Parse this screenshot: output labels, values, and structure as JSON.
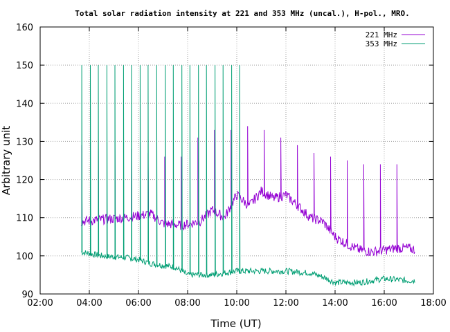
{
  "chart_data": {
    "type": "line",
    "title": "Total solar radiation intensity at 221 and 353 MHz (uncal.), H-pol., MRO.",
    "xlabel": "Time (UT)",
    "ylabel": "Arbitrary unit",
    "xlim": [
      "02:00",
      "18:00"
    ],
    "ylim": [
      90,
      160
    ],
    "x_ticks": [
      "02:00",
      "04:00",
      "06:00",
      "08:00",
      "10:00",
      "12:00",
      "14:00",
      "16:00",
      "18:00"
    ],
    "y_ticks": [
      "90",
      "100",
      "110",
      "120",
      "130",
      "140",
      "150",
      "160"
    ],
    "grid": true,
    "legend_position": "top-right",
    "series": [
      {
        "name": "221 MHz",
        "color": "#9400d3",
        "x": [
          "03:40",
          "04:30",
          "05:30",
          "06:30",
          "07:00",
          "07:45",
          "08:30",
          "09:00",
          "09:30",
          "10:00",
          "10:30",
          "11:00",
          "11:30",
          "12:00",
          "12:30",
          "13:00",
          "13:30",
          "14:00",
          "14:30",
          "15:00",
          "15:30",
          "16:00",
          "16:30",
          "17:00",
          "17:15"
        ],
        "values": [
          109,
          109.5,
          110,
          111,
          108.5,
          108,
          109,
          112,
          110,
          116,
          113,
          117,
          115,
          116,
          113,
          110,
          109,
          105,
          103,
          101.5,
          101,
          101.5,
          102,
          102,
          101.5
        ],
        "spike_peaks": [
          129,
          129,
          129,
          128,
          127,
          126,
          126,
          131,
          133,
          133,
          134,
          133,
          131,
          129,
          127,
          126,
          125,
          124,
          124,
          124
        ]
      },
      {
        "name": "353 MHz",
        "color": "#009e73",
        "x": [
          "03:40",
          "04:30",
          "05:30",
          "06:00",
          "06:30",
          "07:00",
          "07:30",
          "08:00",
          "08:30",
          "09:00",
          "10:00",
          "11:00",
          "12:00",
          "13:00",
          "13:30",
          "14:00",
          "14:30",
          "15:00",
          "16:00",
          "17:00",
          "17:15"
        ],
        "values": [
          101,
          100,
          99.5,
          99,
          98,
          97.5,
          97,
          95,
          95,
          95,
          96,
          96,
          96,
          95.5,
          94.5,
          93,
          93,
          93,
          94,
          93.5,
          93.5
        ],
        "spike_peaks": [
          150,
          150,
          150,
          150,
          150,
          150,
          150,
          150,
          150,
          150,
          150,
          150,
          150,
          150,
          150,
          150,
          150,
          150,
          150,
          150
        ]
      }
    ]
  }
}
